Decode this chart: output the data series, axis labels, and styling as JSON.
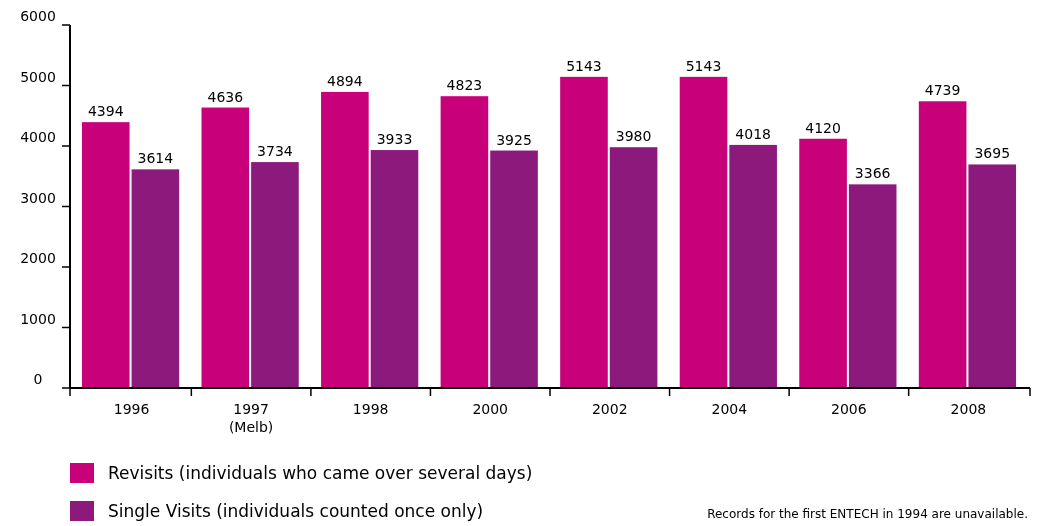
{
  "chart_data": {
    "type": "bar",
    "categories": [
      "1996",
      "1997\n(Melb)",
      "1998",
      "2000",
      "2002",
      "2004",
      "2006",
      "2008"
    ],
    "series": [
      {
        "name": "Revisits (individuals who came over several days)",
        "color": "#c8007a",
        "values": [
          4394,
          4636,
          4894,
          4823,
          5143,
          5143,
          4120,
          4739
        ]
      },
      {
        "name": "Single Visits (individuals counted once only)",
        "color": "#8c1a7c",
        "values": [
          3614,
          3734,
          3933,
          3925,
          3980,
          4018,
          3366,
          3695
        ]
      }
    ],
    "ylim": [
      0,
      6000
    ],
    "yticks": [
      0,
      1000,
      2000,
      3000,
      4000,
      5000,
      6000
    ],
    "data_labels": true,
    "legend": "bottom left",
    "annotations": [
      "Records for the first ENTECH in 1994 are unavailable."
    ]
  }
}
